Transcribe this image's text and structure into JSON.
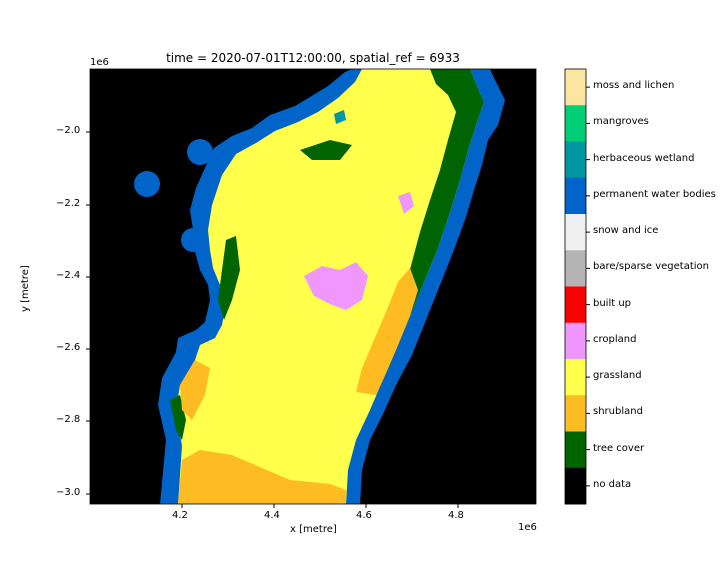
{
  "title": "time = 2020-07-01T12:00:00, spatial_ref = 6933",
  "xlabel": "x [metre]",
  "ylabel": "y [metre]",
  "x_scale_label": "1e6",
  "y_scale_label": "1e6",
  "x_ticks": [
    "4.2",
    "4.4",
    "4.6",
    "4.8"
  ],
  "y_ticks": [
    "−2.0",
    "−2.2",
    "−2.4",
    "−2.6",
    "−2.8",
    "−3.0"
  ],
  "legend": [
    {
      "label": "moss and lichen",
      "color": "#fae6a0"
    },
    {
      "label": "mangroves",
      "color": "#00cf75"
    },
    {
      "label": "herbaceous wetland",
      "color": "#0096a0"
    },
    {
      "label": "permanent water bodies",
      "color": "#0064c8"
    },
    {
      "label": "snow and ice",
      "color": "#f0f0f0"
    },
    {
      "label": "bare/sparse vegetation",
      "color": "#b4b4b4"
    },
    {
      "label": "built up",
      "color": "#fa0000"
    },
    {
      "label": "cropland",
      "color": "#f096ff"
    },
    {
      "label": "grassland",
      "color": "#ffff4c"
    },
    {
      "label": "shrubland",
      "color": "#ffbb22"
    },
    {
      "label": "tree cover",
      "color": "#006400"
    },
    {
      "label": "no data",
      "color": "#000000"
    }
  ],
  "map_colors": {
    "background": "#000000",
    "water": "#0064c8",
    "grassland": "#ffff4c",
    "tree_cover": "#006400",
    "shrubland": "#ffbb22",
    "cropland": "#f096ff",
    "herbaceous_wetland": "#0096a0"
  }
}
